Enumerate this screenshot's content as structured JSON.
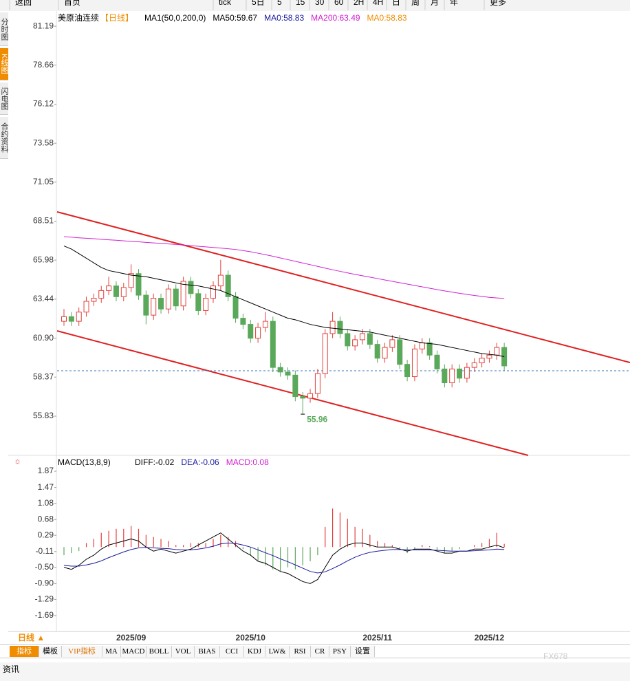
{
  "toolbar": {
    "items": [
      "返回",
      "首页",
      "tick",
      "5日",
      "5",
      "15",
      "30",
      "60",
      "2H",
      "4H",
      "日",
      "周",
      "月",
      "年",
      "更多"
    ]
  },
  "sidebar": [
    "分时图",
    "K线图",
    "闪电图",
    "合约资料"
  ],
  "chart_data": [
    {
      "type": "candlestick",
      "title": "美原油连续",
      "period": "【日线】",
      "legend": [
        {
          "text": "MA1(50,0,200,0)",
          "color": "#000000"
        },
        {
          "text": "MA50:59.67",
          "color": "#000000"
        },
        {
          "text": "MA0:58.83",
          "color": "#1a1aa0"
        },
        {
          "text": "MA200:63.49",
          "color": "#d020d0"
        },
        {
          "text": "MA0:58.83",
          "color": "#f08c00"
        }
      ],
      "categories": [
        null,
        null,
        null,
        null,
        null,
        null,
        null,
        null,
        null,
        "2025/09",
        null,
        null,
        null,
        null,
        null,
        null,
        null,
        null,
        null,
        null,
        null,
        null,
        null,
        null,
        null,
        "2025/10",
        null,
        null,
        null,
        null,
        null,
        null,
        null,
        null,
        null,
        null,
        null,
        null,
        null,
        null,
        null,
        null,
        "2025/11",
        null,
        null,
        null,
        null,
        null,
        null,
        null,
        null,
        null,
        null,
        null,
        null,
        null,
        null,
        "2025/12",
        null,
        null
      ],
      "opens": [
        62.0,
        62.3,
        62.0,
        62.6,
        63.3,
        63.5,
        64.0,
        64.3,
        63.6,
        64.2,
        65.1,
        63.7,
        62.4,
        63.5,
        62.8,
        64.1,
        63.0,
        64.6,
        63.8,
        62.7,
        63.5,
        64.3,
        65.0,
        63.6,
        62.2,
        61.8,
        60.9,
        61.6,
        62.0,
        59.0,
        58.7,
        58.5,
        57.1,
        57.0,
        57.3,
        58.6,
        61.2,
        62.0,
        61.2,
        60.4,
        60.8,
        61.2,
        60.5,
        59.6,
        60.3,
        60.8,
        59.2,
        58.4,
        60.2,
        60.6,
        59.8,
        58.9,
        58.0,
        58.9,
        58.3,
        59.0,
        59.3,
        59.6,
        59.8,
        60.3
      ],
      "highs": [
        62.8,
        62.6,
        62.9,
        63.6,
        63.8,
        64.3,
        64.9,
        64.6,
        64.5,
        65.7,
        65.4,
        64.0,
        63.8,
        63.8,
        64.4,
        64.4,
        64.9,
        64.9,
        64.1,
        63.8,
        64.6,
        66.0,
        65.3,
        63.9,
        62.5,
        62.1,
        61.9,
        62.6,
        62.3,
        59.3,
        59.0,
        58.8,
        57.4,
        57.6,
        58.9,
        61.5,
        62.6,
        62.3,
        61.5,
        61.1,
        61.5,
        61.5,
        60.8,
        60.6,
        61.1,
        61.1,
        59.5,
        60.5,
        60.9,
        60.9,
        60.1,
        59.2,
        59.2,
        59.2,
        59.3,
        59.6,
        59.9,
        60.1,
        60.6,
        60.6
      ],
      "lows": [
        61.7,
        61.7,
        61.7,
        62.3,
        63.0,
        63.2,
        63.7,
        63.3,
        63.3,
        63.9,
        63.4,
        61.8,
        62.1,
        62.5,
        62.5,
        62.7,
        62.7,
        63.5,
        62.4,
        62.4,
        63.2,
        64.0,
        63.3,
        61.9,
        61.5,
        60.6,
        60.6,
        61.3,
        58.7,
        58.4,
        58.2,
        56.8,
        55.96,
        56.7,
        57.0,
        58.3,
        60.9,
        60.9,
        60.1,
        60.1,
        60.5,
        60.2,
        59.3,
        59.3,
        60.0,
        58.9,
        58.1,
        58.1,
        59.9,
        59.5,
        58.6,
        57.7,
        57.7,
        58.0,
        58.0,
        58.7,
        59.0,
        59.3,
        59.5,
        58.8
      ],
      "closes": [
        62.3,
        62.0,
        62.6,
        63.3,
        63.5,
        64.0,
        64.3,
        63.6,
        64.2,
        65.1,
        63.7,
        62.4,
        63.5,
        62.8,
        64.1,
        63.0,
        64.6,
        63.8,
        62.7,
        63.5,
        64.3,
        65.0,
        63.6,
        62.2,
        61.8,
        60.9,
        61.6,
        62.0,
        59.0,
        58.7,
        58.5,
        57.1,
        57.0,
        57.3,
        58.6,
        61.2,
        62.0,
        61.2,
        60.4,
        60.8,
        61.2,
        60.5,
        59.6,
        60.3,
        60.8,
        59.2,
        58.4,
        60.2,
        60.6,
        59.8,
        58.9,
        58.0,
        58.9,
        58.3,
        59.0,
        59.3,
        59.6,
        59.8,
        60.3,
        59.1
      ],
      "up_color": "#e0403a",
      "down_color": "#5aa85a",
      "series": [
        {
          "color": "#000000",
          "values": [
            66.9,
            66.7,
            66.4,
            66.1,
            65.8,
            65.5,
            65.3,
            65.2,
            65.1,
            65.0,
            64.95,
            64.9,
            64.8,
            64.7,
            64.6,
            64.5,
            64.4,
            64.35,
            64.3,
            64.2,
            64.1,
            64.0,
            63.8,
            63.6,
            63.4,
            63.2,
            63.0,
            62.8,
            62.6,
            62.4,
            62.2,
            62.1,
            61.95,
            61.8,
            61.7,
            61.6,
            61.55,
            61.5,
            61.45,
            61.4,
            61.35,
            61.3,
            61.2,
            61.1,
            61.0,
            60.9,
            60.8,
            60.7,
            60.6,
            60.55,
            60.5,
            60.4,
            60.3,
            60.2,
            60.1,
            60.0,
            59.9,
            59.85,
            59.8,
            59.7
          ]
        },
        {
          "color": "#d020d0",
          "values": [
            67.5,
            67.47,
            67.43,
            67.4,
            67.37,
            67.33,
            67.3,
            67.27,
            67.23,
            67.2,
            67.17,
            67.13,
            67.1,
            67.07,
            67.03,
            67.0,
            66.96,
            66.92,
            66.88,
            66.84,
            66.8,
            66.76,
            66.72,
            66.67,
            66.6,
            66.52,
            66.43,
            66.33,
            66.23,
            66.12,
            66.01,
            65.9,
            65.79,
            65.68,
            65.57,
            65.46,
            65.35,
            65.25,
            65.15,
            65.05,
            64.96,
            64.87,
            64.78,
            64.69,
            64.6,
            64.51,
            64.42,
            64.33,
            64.24,
            64.15,
            64.06,
            63.98,
            63.9,
            63.82,
            63.75,
            63.68,
            63.62,
            63.56,
            63.52,
            63.49
          ]
        }
      ],
      "low_label": "55.96",
      "ylim": [
        53.37,
        82.0
      ],
      "yticks": [
        55.83,
        58.37,
        {
          "value": 60.9,
          "label": "60.90"
        },
        63.44,
        65.98,
        68.51,
        71.05,
        73.58,
        76.12,
        78.66,
        81.19
      ],
      "grid": false
    },
    {
      "type": "macd",
      "title": "MACD(13,8,9)",
      "legend": [
        {
          "text": "DIFF:-0.02",
          "color": "#000000"
        },
        {
          "text": "DEA:-0.06",
          "color": "#1a1aa0"
        },
        {
          "text": "MACD:0.08",
          "color": "#d020d0"
        }
      ],
      "histogram": [
        -0.2,
        -0.15,
        -0.1,
        0.1,
        0.2,
        0.35,
        0.4,
        0.45,
        0.45,
        0.52,
        0.45,
        0.3,
        0.25,
        0.2,
        0.15,
        0.05,
        0.05,
        0.1,
        0.1,
        0.1,
        0.2,
        0.3,
        0.25,
        0.15,
        -0.05,
        -0.2,
        -0.35,
        -0.45,
        -0.55,
        -0.6,
        -0.5,
        -0.55,
        -0.45,
        -0.35,
        -0.2,
        0.5,
        0.95,
        0.85,
        0.7,
        0.5,
        0.45,
        0.3,
        0.15,
        0.1,
        0.05,
        -0.05,
        -0.15,
        -0.05,
        0.05,
        0.02,
        -0.08,
        -0.15,
        -0.1,
        -0.05,
        0.0,
        0.05,
        0.1,
        0.2,
        0.35,
        0.08
      ],
      "up_color": "#e0403a",
      "down_color": "#5aa85a",
      "series": [
        {
          "color": "#000000",
          "values": [
            -0.5,
            -0.55,
            -0.45,
            -0.3,
            -0.2,
            -0.05,
            0.05,
            0.1,
            0.15,
            0.2,
            0.15,
            0.0,
            -0.1,
            -0.05,
            -0.1,
            -0.15,
            -0.1,
            -0.05,
            0.05,
            0.15,
            0.25,
            0.35,
            0.2,
            0.05,
            -0.1,
            -0.2,
            -0.35,
            -0.4,
            -0.5,
            -0.6,
            -0.65,
            -0.75,
            -0.85,
            -0.9,
            -0.8,
            -0.5,
            -0.2,
            -0.05,
            0.05,
            0.1,
            0.1,
            0.05,
            0.0,
            0.0,
            0.0,
            -0.05,
            -0.1,
            -0.05,
            -0.05,
            -0.05,
            -0.1,
            -0.15,
            -0.15,
            -0.1,
            -0.1,
            -0.05,
            -0.05,
            0.0,
            0.05,
            -0.02
          ]
        },
        {
          "color": "#1a1aa0",
          "values": [
            -0.45,
            -0.47,
            -0.47,
            -0.44,
            -0.4,
            -0.34,
            -0.26,
            -0.19,
            -0.12,
            -0.06,
            -0.02,
            -0.01,
            -0.02,
            -0.03,
            -0.04,
            -0.06,
            -0.07,
            -0.07,
            -0.05,
            -0.02,
            0.02,
            0.08,
            0.1,
            0.09,
            0.05,
            0.0,
            -0.07,
            -0.14,
            -0.21,
            -0.29,
            -0.36,
            -0.44,
            -0.52,
            -0.6,
            -0.64,
            -0.61,
            -0.53,
            -0.44,
            -0.34,
            -0.25,
            -0.18,
            -0.13,
            -0.1,
            -0.08,
            -0.06,
            -0.06,
            -0.07,
            -0.07,
            -0.07,
            -0.07,
            -0.08,
            -0.09,
            -0.1,
            -0.1,
            -0.1,
            -0.09,
            -0.08,
            -0.07,
            -0.05,
            -0.06
          ]
        }
      ],
      "ylim": [
        -2.03,
        2.21
      ],
      "yticks": [
        -1.69,
        -1.29,
        {
          "value": -0.9,
          "label": "-0.90"
        },
        {
          "value": -0.5,
          "label": "-0.50"
        },
        -0.11,
        0.29,
        0.68,
        1.08,
        1.47,
        1.87
      ],
      "grid": false
    }
  ],
  "bottom_bar": {
    "period": "日线 ▲",
    "tabs": [
      "指标",
      "模板",
      "VIP指标",
      "MA",
      "MACD",
      "BOLL",
      "VOL",
      "BIAS",
      "CCI",
      "KDJ",
      "LW&",
      "RSI",
      "CR",
      "PSY",
      "设置"
    ],
    "news": "资讯",
    "watermark": "FX678"
  }
}
